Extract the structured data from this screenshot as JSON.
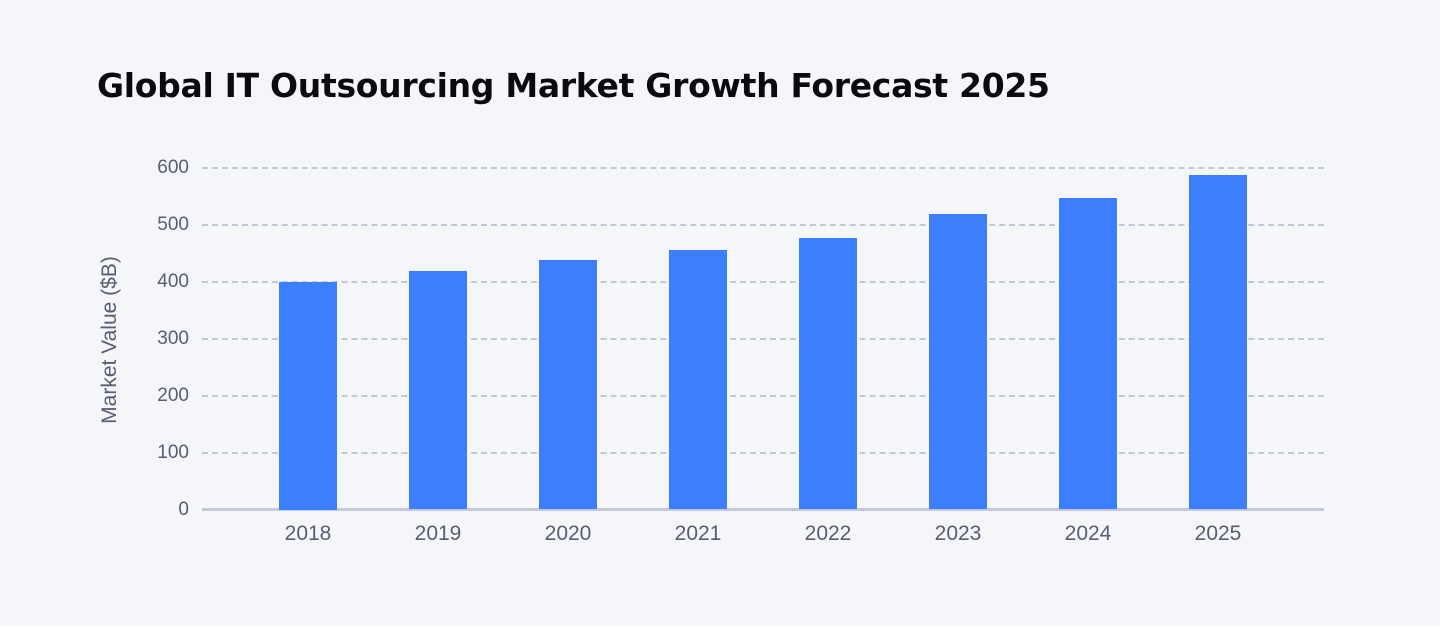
{
  "title": "Global IT Outsourcing Market Growth Forecast 2025",
  "colors": {
    "background": "#f4f6fa",
    "bar": "#3d7eff",
    "gridline": "#c3c8d6",
    "axis": "#c3c9d9",
    "tick_text": "#5c5c70",
    "title_text": "#0b0b0f"
  },
  "chart_data": {
    "type": "bar",
    "title": "Global IT Outsourcing Market Growth Forecast 2025",
    "xlabel": "",
    "ylabel": "Market Value ($B)",
    "categories": [
      "2018",
      "2019",
      "2020",
      "2021",
      "2022",
      "2023",
      "2024",
      "2025"
    ],
    "values": [
      400,
      418,
      437,
      456,
      477,
      518,
      547,
      587
    ],
    "ylim": [
      0,
      600
    ],
    "yticks": [
      0,
      100,
      200,
      300,
      400,
      500,
      600
    ],
    "grid": true,
    "legend": null
  }
}
